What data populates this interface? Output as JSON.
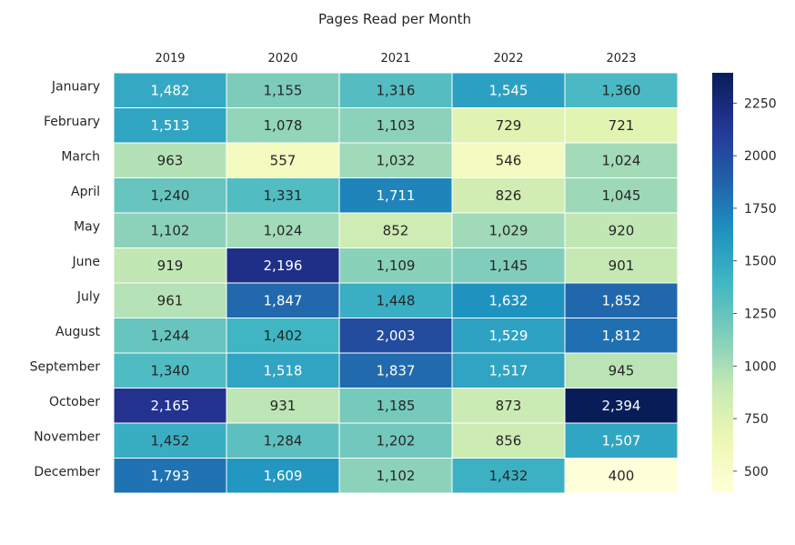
{
  "chart_data": {
    "type": "heatmap",
    "title": "Pages Read per Month",
    "xlabel": "",
    "ylabel": "",
    "x": [
      "2019",
      "2020",
      "2021",
      "2022",
      "2023"
    ],
    "y": [
      "January",
      "February",
      "March",
      "April",
      "May",
      "June",
      "July",
      "August",
      "September",
      "October",
      "November",
      "December"
    ],
    "values": [
      [
        1482,
        1155,
        1316,
        1545,
        1360
      ],
      [
        1513,
        1078,
        1103,
        729,
        721
      ],
      [
        963,
        557,
        1032,
        546,
        1024
      ],
      [
        1240,
        1331,
        1711,
        826,
        1045
      ],
      [
        1102,
        1024,
        852,
        1029,
        920
      ],
      [
        919,
        2196,
        1109,
        1145,
        901
      ],
      [
        961,
        1847,
        1448,
        1632,
        1852
      ],
      [
        1244,
        1402,
        2003,
        1529,
        1812
      ],
      [
        1340,
        1518,
        1837,
        1517,
        945
      ],
      [
        2165,
        931,
        1185,
        873,
        2394
      ],
      [
        1452,
        1284,
        1202,
        856,
        1507
      ],
      [
        1793,
        1609,
        1102,
        1432,
        400
      ]
    ],
    "cell_labels": [
      [
        "1,482",
        "1,155",
        "1,316",
        "1,545",
        "1,360"
      ],
      [
        "1,513",
        "1,078",
        "1,103",
        "729",
        "721"
      ],
      [
        "963",
        "557",
        "1,032",
        "546",
        "1,024"
      ],
      [
        "1,240",
        "1,331",
        "1,711",
        "826",
        "1,045"
      ],
      [
        "1,102",
        "1,024",
        "852",
        "1,029",
        "920"
      ],
      [
        "919",
        "2,196",
        "1,109",
        "1,145",
        "901"
      ],
      [
        "961",
        "1,847",
        "1,448",
        "1,632",
        "1,852"
      ],
      [
        "1,244",
        "1,402",
        "2,003",
        "1,529",
        "1,812"
      ],
      [
        "1,340",
        "1,518",
        "1,837",
        "1,517",
        "945"
      ],
      [
        "2,165",
        "931",
        "1,185",
        "873",
        "2,394"
      ],
      [
        "1,452",
        "1,284",
        "1,202",
        "856",
        "1,507"
      ],
      [
        "1,793",
        "1,609",
        "1,102",
        "1,432",
        "400"
      ]
    ],
    "colormap": "YlGnBu",
    "vmin": 400,
    "vmax": 2394,
    "colorbar_ticks": [
      500,
      750,
      1000,
      1250,
      1500,
      1750,
      2000,
      2250
    ],
    "colorbar_labels": [
      "500",
      "750",
      "1000",
      "1250",
      "1500",
      "1750",
      "2000",
      "2250"
    ],
    "x_axis_position": "top",
    "grid": false,
    "colorbar_position": "right"
  }
}
